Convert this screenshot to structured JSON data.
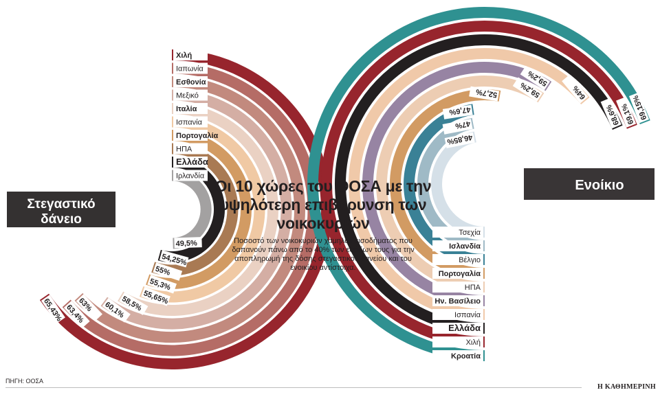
{
  "title": "Οι 10 χώρες του ΟΟΣΑ με την υψηλότερη επιβάρυνση των νοικοκυριών",
  "subtitle": "Ποσοστό των νοικοκυριών χαμηλού εισοδήματος που δαπανούν πάνω από το 40% των εσόδων τους για την αποπληρωμή της δόσης στεγαστικού δανείου και του ενοικίου αντίστοιχα.",
  "source": "ΠΗΓΗ: ΟΟΣΑ",
  "brand": "Η ΚΑΘΗΜΕΡΙΝΗ",
  "chart_data": [
    {
      "type": "radial-bar",
      "title": "Στεγαστικό δάνειο",
      "unit": "%",
      "categories": [
        "Χιλή",
        "Ιαπωνία",
        "Εσθονία",
        "Μεξικό",
        "Ιταλία",
        "Ισπανία",
        "Πορτογαλία",
        "ΗΠΑ",
        "Ελλάδα",
        "Ιρλανδία"
      ],
      "values": [
        65.43,
        63.4,
        63,
        60.1,
        58.5,
        55.65,
        55.3,
        55,
        54.25,
        49.5
      ],
      "value_labels": [
        "65,43%",
        "63,4%",
        "63%",
        "60,1%",
        "58,5%",
        "55,65%",
        "55,3%",
        "55%",
        "54,25%",
        "49,5%"
      ],
      "bold": [
        true,
        false,
        true,
        false,
        true,
        false,
        true,
        false,
        true,
        false
      ],
      "colors": [
        "#97252d",
        "#b56c66",
        "#c28a7e",
        "#d4aea4",
        "#ead1c3",
        "#f0c9a4",
        "#d29b63",
        "#a97a53",
        "#231f20",
        "#a3a1a1"
      ]
    },
    {
      "type": "radial-bar",
      "title": "Ενοίκιο",
      "unit": "%",
      "categories": [
        "Κροατία",
        "Χιλή",
        "Ελλάδα",
        "Ισπανία",
        "Ην. Βασίλειο",
        "ΗΠΑ",
        "Πορτογαλία",
        "Βέλγιο",
        "Ισλανδία",
        "Τσεχία"
      ],
      "values": [
        69.15,
        69.1,
        68.6,
        64,
        59.2,
        59.2,
        52.7,
        47.6,
        47,
        46.85
      ],
      "value_labels": [
        "69,15%",
        "69,1%",
        "68,6%",
        "64%",
        "59,2%",
        "59,2%",
        "52,7%",
        "47,6%",
        "47%",
        "46,85%"
      ],
      "bold": [
        true,
        false,
        true,
        false,
        true,
        false,
        true,
        false,
        true,
        false
      ],
      "colors": [
        "#2f9191",
        "#97252d",
        "#231f20",
        "#f0c9a9",
        "#9784a3",
        "#edcdb3",
        "#d29b63",
        "#3a8196",
        "#9fbac6",
        "#d5e0e8"
      ]
    }
  ]
}
